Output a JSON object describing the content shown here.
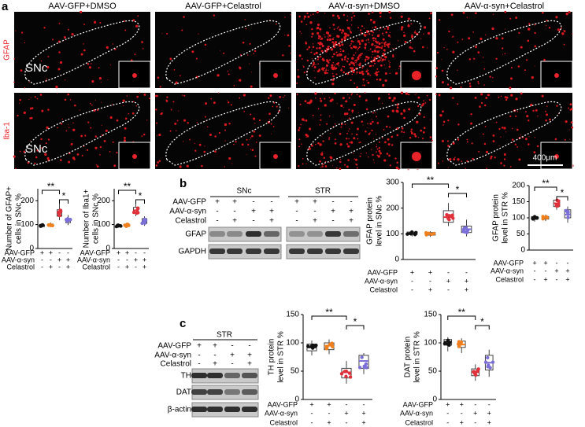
{
  "panels": {
    "a": "a",
    "b": "b",
    "c": "c"
  },
  "images": {
    "columns": [
      "AAV-GFP+DMSO",
      "AAV-GFP+Celastrol",
      "AAV-α-syn+DMSO",
      "AAV-α-syn+Celastrol"
    ],
    "rows": [
      "GFAP",
      "Iba-1"
    ],
    "region": "SNc",
    "scale": "400μm"
  },
  "blot_b": {
    "headers": [
      "SNc",
      "STR"
    ],
    "conditions": [
      {
        "label": "AAV-GFP",
        "signs": [
          "+",
          "+",
          "-",
          "-",
          "+",
          "+",
          "-",
          "-"
        ]
      },
      {
        "label": "AAV-α-syn",
        "signs": [
          "-",
          "-",
          "+",
          "+",
          "-",
          "-",
          "+",
          "+"
        ]
      },
      {
        "label": "Celastrol",
        "signs": [
          "-",
          "+",
          "-",
          "+",
          "-",
          "+",
          "-",
          "+"
        ]
      }
    ],
    "bands": [
      "GFAP",
      "GAPDH"
    ]
  },
  "blot_c": {
    "header": "STR",
    "conditions": [
      {
        "label": "AAV-GFP",
        "signs": [
          "+",
          "+",
          "-",
          "-"
        ]
      },
      {
        "label": "AAV-α-syn",
        "signs": [
          "-",
          "-",
          "+",
          "+"
        ]
      },
      {
        "label": "Celastrol",
        "signs": [
          "-",
          "+",
          "-",
          "+"
        ]
      }
    ],
    "bands": [
      "TH",
      "DAT",
      "β-actin"
    ]
  },
  "plots": [
    {
      "ylabel": [
        "Number of GFAP+",
        "cells in SNc %"
      ],
      "ylim": [
        0,
        250
      ],
      "yticks": [
        0,
        100,
        200
      ],
      "significance": [
        "**",
        "*"
      ],
      "groups": [
        {
          "color": "#111111",
          "box": [
            88,
            92,
            95,
            99,
            103
          ]
        },
        {
          "color": "#f07f1e",
          "box": [
            90,
            95,
            98,
            102,
            108
          ]
        },
        {
          "color": "#e0303a",
          "box": [
            118,
            135,
            150,
            162,
            190
          ]
        },
        {
          "color": "#7b6fd8",
          "box": [
            98,
            108,
            115,
            125,
            140
          ]
        }
      ],
      "conditions": [
        {
          "label": "AAV-GFP",
          "signs": [
            "+",
            "+",
            "-",
            "-"
          ]
        },
        {
          "label": "AAV-α-syn",
          "signs": [
            "-",
            "-",
            "+",
            "+"
          ]
        },
        {
          "label": "Celastrol",
          "signs": [
            "-",
            "+",
            "-",
            "+"
          ]
        }
      ]
    },
    {
      "ylabel": [
        "Number of Iba1+",
        "cells in SNc %"
      ],
      "ylim": [
        0,
        250
      ],
      "yticks": [
        0,
        100,
        200
      ],
      "significance": [
        "**",
        "*"
      ],
      "groups": [
        {
          "color": "#111111",
          "box": [
            88,
            92,
            96,
            99,
            104
          ]
        },
        {
          "color": "#f07f1e",
          "box": [
            88,
            93,
            98,
            101,
            106
          ]
        },
        {
          "color": "#e0303a",
          "box": [
            135,
            148,
            160,
            172,
            195
          ]
        },
        {
          "color": "#7b6fd8",
          "box": [
            95,
            105,
            115,
            125,
            135
          ]
        }
      ],
      "conditions": [
        {
          "label": "AAV-GFP",
          "signs": [
            "+",
            "+",
            "-",
            "-"
          ]
        },
        {
          "label": "AAV-α-syn",
          "signs": [
            "-",
            "-",
            "+",
            "+"
          ]
        },
        {
          "label": "Celastrol",
          "signs": [
            "-",
            "+",
            "-",
            "+"
          ]
        }
      ]
    },
    {
      "ylabel": [
        "GFAP protein",
        "level in SNc %"
      ],
      "ylim": [
        0,
        300
      ],
      "yticks": [
        0,
        100,
        200,
        300
      ],
      "significance": [
        "**",
        "*"
      ],
      "groups": [
        {
          "color": "#111111",
          "box": [
            90,
            97,
            102,
            107,
            112
          ]
        },
        {
          "color": "#f07f1e",
          "box": [
            88,
            95,
            100,
            105,
            110
          ]
        },
        {
          "color": "#e0303a",
          "box": [
            130,
            145,
            165,
            190,
            220
          ]
        },
        {
          "color": "#7b6fd8",
          "box": [
            90,
            105,
            118,
            130,
            155
          ]
        }
      ],
      "conditions": [
        {
          "label": "AAV-GFP",
          "signs": [
            "+",
            "+",
            "-",
            "-"
          ]
        },
        {
          "label": "AAV-α-syn",
          "signs": [
            "-",
            "-",
            "+",
            "+"
          ]
        },
        {
          "label": "Celastrol",
          "signs": [
            "-",
            "+",
            "-",
            "+"
          ]
        }
      ]
    },
    {
      "ylabel": [
        "GFAP protein",
        "level in STR %"
      ],
      "ylim": [
        0,
        200
      ],
      "yticks": [
        0,
        50,
        100,
        150,
        200
      ],
      "significance": [
        "**",
        "*"
      ],
      "groups": [
        {
          "color": "#111111",
          "box": [
            88,
            95,
            100,
            104,
            108
          ]
        },
        {
          "color": "#f07f1e",
          "box": [
            90,
            96,
            100,
            104,
            110
          ]
        },
        {
          "color": "#e0303a",
          "box": [
            125,
            135,
            145,
            155,
            165
          ]
        },
        {
          "color": "#7b6fd8",
          "box": [
            85,
            100,
            110,
            125,
            135
          ]
        }
      ],
      "conditions": [
        {
          "label": "AAV-GFP",
          "signs": [
            "+",
            "+",
            "-",
            "-"
          ]
        },
        {
          "label": "AAV-α-syn",
          "signs": [
            "-",
            "-",
            "+",
            "+"
          ]
        },
        {
          "label": "Celastrol",
          "signs": [
            "-",
            "+",
            "-",
            "+"
          ]
        }
      ]
    },
    {
      "ylabel": [
        "TH protein",
        "level in STR %"
      ],
      "ylim": [
        0,
        150
      ],
      "yticks": [
        0,
        50,
        100,
        150
      ],
      "significance": [
        "**",
        "*"
      ],
      "groups": [
        {
          "color": "#111111",
          "box": [
            78,
            86,
            92,
            98,
            104
          ]
        },
        {
          "color": "#f07f1e",
          "box": [
            80,
            88,
            95,
            100,
            106
          ]
        },
        {
          "color": "#e0303a",
          "box": [
            28,
            38,
            48,
            55,
            68
          ]
        },
        {
          "color": "#7b6fd8",
          "box": [
            45,
            55,
            68,
            78,
            82
          ]
        }
      ],
      "conditions": [
        {
          "label": "AAV-GFP",
          "signs": [
            "+",
            "+",
            "-",
            "-"
          ]
        },
        {
          "label": "AAV-α-syn",
          "signs": [
            "-",
            "-",
            "+",
            "+"
          ]
        },
        {
          "label": "Celastrol",
          "signs": [
            "-",
            "+",
            "-",
            "+"
          ]
        }
      ]
    },
    {
      "ylabel": [
        "DAT protein",
        "level in STR %"
      ],
      "ylim": [
        0,
        150
      ],
      "yticks": [
        0,
        50,
        100,
        150
      ],
      "significance": [
        "**",
        "*"
      ],
      "groups": [
        {
          "color": "#111111",
          "box": [
            85,
            96,
            102,
            106,
            110
          ]
        },
        {
          "color": "#f07f1e",
          "box": [
            82,
            92,
            97,
            103,
            108
          ]
        },
        {
          "color": "#e0303a",
          "box": [
            33,
            42,
            48,
            54,
            62
          ]
        },
        {
          "color": "#7b6fd8",
          "box": [
            40,
            52,
            65,
            78,
            88
          ]
        }
      ],
      "conditions": [
        {
          "label": "AAV-GFP",
          "signs": [
            "+",
            "+",
            "-",
            "-"
          ]
        },
        {
          "label": "AAV-α-syn",
          "signs": [
            "-",
            "-",
            "+",
            "+"
          ]
        },
        {
          "label": "Celastrol",
          "signs": [
            "-",
            "+",
            "-",
            "+"
          ]
        }
      ]
    }
  ]
}
